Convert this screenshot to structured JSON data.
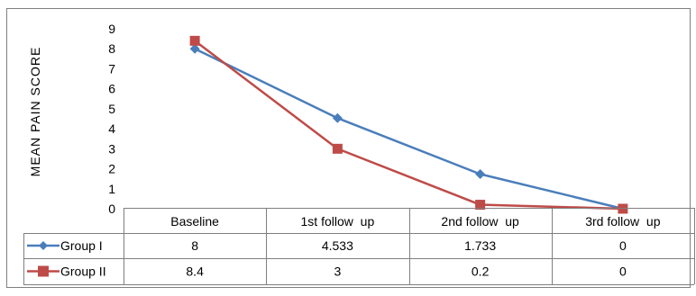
{
  "chart_data": {
    "type": "line",
    "title": "",
    "ylabel": "MEAN PAIN SCORE",
    "xlabel": "",
    "ylim": [
      0,
      9
    ],
    "yticks": [
      "0",
      "1",
      "2",
      "3",
      "4",
      "5",
      "6",
      "7",
      "8",
      "9"
    ],
    "grid": false,
    "legend": "in data table",
    "categories": [
      "Baseline",
      "1st follow  up",
      "2nd follow  up",
      "3rd follow  up"
    ],
    "series": [
      {
        "name": "Group I",
        "marker": "diamond",
        "color": "#4A7EBB",
        "values": [
          8,
          4.533,
          1.733,
          0
        ],
        "labels": [
          "8",
          "4.533",
          "1.733",
          "0"
        ]
      },
      {
        "name": "Group II",
        "marker": "square",
        "color": "#BE4B48",
        "values": [
          8.4,
          3,
          0.2,
          0
        ],
        "labels": [
          "8.4",
          "3",
          "0.2",
          "0"
        ]
      }
    ]
  }
}
